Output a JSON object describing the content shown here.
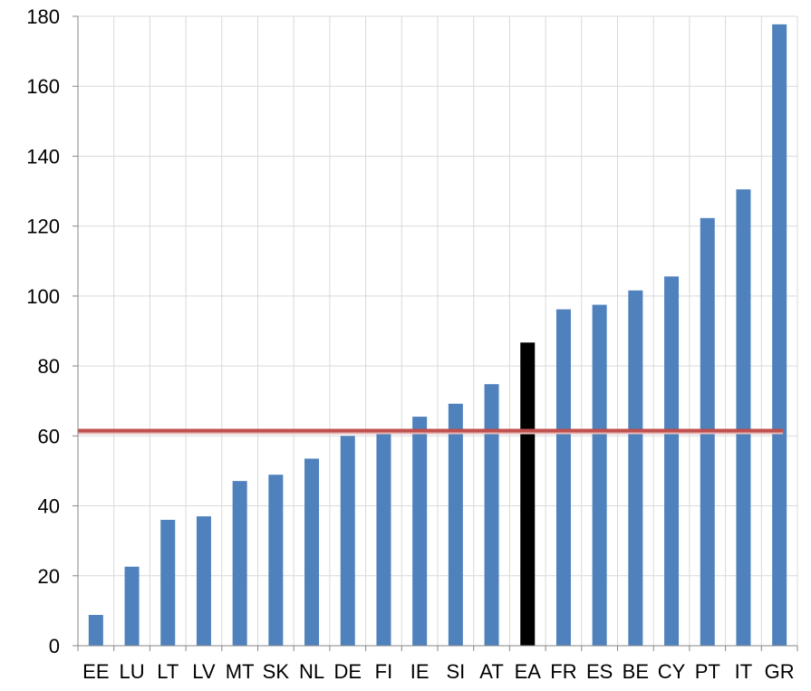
{
  "chart_data": {
    "type": "bar",
    "categories": [
      "EE",
      "LU",
      "LT",
      "LV",
      "MT",
      "SK",
      "NL",
      "DE",
      "FI",
      "IE",
      "SI",
      "AT",
      "EA",
      "FR",
      "ES",
      "BE",
      "CY",
      "PT",
      "IT",
      "GR"
    ],
    "values": [
      8.8,
      22.6,
      36.0,
      37.0,
      47.1,
      48.9,
      53.5,
      60.0,
      60.5,
      65.5,
      69.2,
      74.8,
      86.7,
      96.2,
      97.5,
      101.6,
      105.6,
      122.3,
      130.5,
      177.7
    ],
    "highlight_category": "EA",
    "colors": {
      "bar": "#4f81bd",
      "highlight": "#000000",
      "reference_line": "#c0504d",
      "grid": "#d9d9d9",
      "axis": "#868686"
    },
    "reference_line": {
      "value": 61.5
    },
    "ylim": [
      0,
      180
    ],
    "yticks": [
      0,
      20,
      40,
      60,
      80,
      100,
      120,
      140,
      160,
      180
    ],
    "grid": true,
    "legend": "none",
    "title": "",
    "xlabel": "",
    "ylabel": ""
  }
}
